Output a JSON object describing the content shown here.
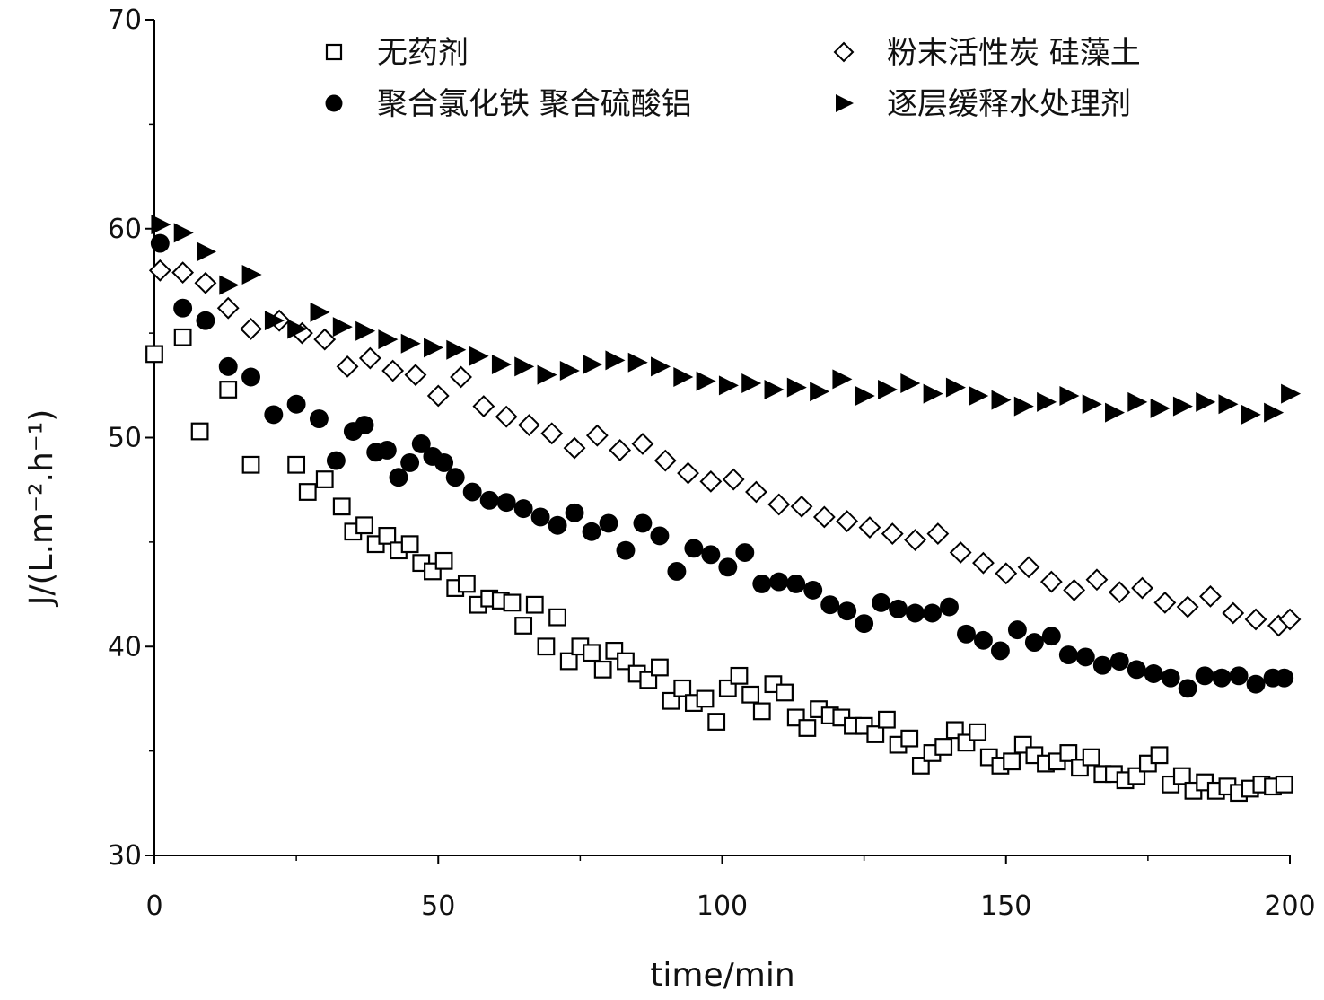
{
  "chart_data": {
    "type": "scatter",
    "xlabel": "time/min",
    "ylabel": "J/(L.m⁻².h⁻¹)",
    "xlim": [
      0,
      200
    ],
    "ylim": [
      30,
      70
    ],
    "xticks": [
      0,
      50,
      100,
      150,
      200
    ],
    "yticks": [
      30,
      40,
      50,
      60,
      70
    ],
    "xtick_labels": [
      "0",
      "50",
      "100",
      "150",
      "200"
    ],
    "ytick_labels": [
      "30",
      "40",
      "50",
      "60",
      "70"
    ],
    "grid": false,
    "legend_position": "top",
    "series": [
      {
        "name": "无药剂",
        "marker": "open-square",
        "x": [
          0,
          5,
          8,
          13,
          17,
          25,
          27,
          30,
          33,
          35,
          37,
          39,
          41,
          43,
          45,
          47,
          49,
          51,
          53,
          55,
          57,
          59,
          61,
          63,
          65,
          67,
          69,
          71,
          73,
          75,
          77,
          79,
          81,
          83,
          85,
          87,
          89,
          91,
          93,
          95,
          97,
          99,
          101,
          103,
          105,
          107,
          109,
          111,
          113,
          115,
          117,
          119,
          121,
          123,
          125,
          127,
          129,
          131,
          133,
          135,
          137,
          139,
          141,
          143,
          145,
          147,
          149,
          151,
          153,
          155,
          157,
          159,
          161,
          163,
          165,
          167,
          169,
          171,
          173,
          175,
          177,
          179,
          181,
          183,
          185,
          187,
          189,
          191,
          193,
          195,
          197,
          199
        ],
        "y": [
          54.0,
          54.8,
          50.3,
          52.3,
          48.7,
          48.7,
          47.4,
          48.0,
          46.7,
          45.5,
          45.8,
          44.9,
          45.3,
          44.6,
          44.9,
          44.0,
          43.6,
          44.1,
          42.8,
          43.0,
          42.0,
          42.3,
          42.2,
          42.1,
          41.0,
          42.0,
          40.0,
          41.4,
          39.3,
          40.0,
          39.7,
          38.9,
          39.8,
          39.3,
          38.7,
          38.4,
          39.0,
          37.4,
          38.0,
          37.3,
          37.5,
          36.4,
          38.0,
          38.6,
          37.7,
          36.9,
          38.2,
          37.8,
          36.6,
          36.1,
          37.0,
          36.7,
          36.6,
          36.2,
          36.2,
          35.8,
          36.5,
          35.3,
          35.6,
          34.3,
          34.9,
          35.2,
          36.0,
          35.4,
          35.9,
          34.7,
          34.3,
          34.5,
          35.3,
          34.8,
          34.4,
          34.5,
          34.9,
          34.2,
          34.7,
          33.9,
          33.9,
          33.6,
          33.8,
          34.4,
          34.8,
          33.4,
          33.8,
          33.1,
          33.5,
          33.1,
          33.3,
          33.0,
          33.2,
          33.4,
          33.3,
          33.4
        ]
      },
      {
        "name": "粉末活性炭 硅藻土",
        "marker": "open-diamond",
        "x": [
          1,
          5,
          9,
          13,
          17,
          22,
          26,
          30,
          34,
          38,
          42,
          46,
          50,
          54,
          58,
          62,
          66,
          70,
          74,
          78,
          82,
          86,
          90,
          94,
          98,
          102,
          106,
          110,
          114,
          118,
          122,
          126,
          130,
          134,
          138,
          142,
          146,
          150,
          154,
          158,
          162,
          166,
          170,
          174,
          178,
          182,
          186,
          190,
          194,
          198,
          200
        ],
        "y": [
          58.0,
          57.9,
          57.4,
          56.2,
          55.2,
          55.6,
          55.0,
          54.7,
          53.4,
          53.8,
          53.2,
          53.0,
          52.0,
          52.9,
          51.5,
          51.0,
          50.6,
          50.2,
          49.5,
          50.1,
          49.4,
          49.7,
          48.9,
          48.3,
          47.9,
          48.0,
          47.4,
          46.8,
          46.7,
          46.2,
          46.0,
          45.7,
          45.4,
          45.1,
          45.4,
          44.5,
          44.0,
          43.5,
          43.8,
          43.1,
          42.7,
          43.2,
          42.6,
          42.8,
          42.1,
          41.9,
          42.4,
          41.6,
          41.3,
          41.0,
          41.3
        ]
      },
      {
        "name": "聚合氯化铁 聚合硫酸铝",
        "marker": "filled-circle",
        "x": [
          1,
          5,
          9,
          13,
          17,
          21,
          25,
          29,
          32,
          35,
          37,
          39,
          41,
          43,
          45,
          47,
          49,
          51,
          53,
          56,
          59,
          62,
          65,
          68,
          71,
          74,
          77,
          80,
          83,
          86,
          89,
          92,
          95,
          98,
          101,
          104,
          107,
          110,
          113,
          116,
          119,
          122,
          125,
          128,
          131,
          134,
          137,
          140,
          143,
          146,
          149,
          152,
          155,
          158,
          161,
          164,
          167,
          170,
          173,
          176,
          179,
          182,
          185,
          188,
          191,
          194,
          197,
          199
        ],
        "y": [
          59.3,
          56.2,
          55.6,
          53.4,
          52.9,
          51.1,
          51.6,
          50.9,
          48.9,
          50.3,
          50.6,
          49.3,
          49.4,
          48.1,
          48.8,
          49.7,
          49.1,
          48.8,
          48.1,
          47.4,
          47.0,
          46.9,
          46.6,
          46.2,
          45.8,
          46.4,
          45.5,
          45.9,
          44.6,
          45.9,
          45.3,
          43.6,
          44.7,
          44.4,
          43.8,
          44.5,
          43.0,
          43.1,
          43.0,
          42.7,
          42.0,
          41.7,
          41.1,
          42.1,
          41.8,
          41.6,
          41.6,
          41.9,
          40.6,
          40.3,
          39.8,
          40.8,
          40.2,
          40.5,
          39.6,
          39.5,
          39.1,
          39.3,
          38.9,
          38.7,
          38.5,
          38.0,
          38.6,
          38.5,
          38.6,
          38.2,
          38.5,
          38.5
        ]
      },
      {
        "name": "逐层缓释水处理剂",
        "marker": "filled-triangle-right",
        "x": [
          1,
          5,
          9,
          13,
          17,
          21,
          25,
          29,
          33,
          37,
          41,
          45,
          49,
          53,
          57,
          61,
          65,
          69,
          73,
          77,
          81,
          85,
          89,
          93,
          97,
          101,
          105,
          109,
          113,
          117,
          121,
          125,
          129,
          133,
          137,
          141,
          145,
          149,
          153,
          157,
          161,
          165,
          169,
          173,
          177,
          181,
          185,
          189,
          193,
          197,
          200
        ],
        "y": [
          60.2,
          59.8,
          58.9,
          57.3,
          57.8,
          55.6,
          55.2,
          56.0,
          55.3,
          55.1,
          54.7,
          54.5,
          54.3,
          54.2,
          53.9,
          53.5,
          53.4,
          53.0,
          53.2,
          53.5,
          53.7,
          53.6,
          53.4,
          52.9,
          52.7,
          52.5,
          52.6,
          52.3,
          52.4,
          52.2,
          52.8,
          52.0,
          52.3,
          52.6,
          52.1,
          52.4,
          52.0,
          51.8,
          51.5,
          51.7,
          52.0,
          51.6,
          51.2,
          51.7,
          51.4,
          51.5,
          51.7,
          51.6,
          51.1,
          51.2,
          52.1
        ]
      }
    ]
  }
}
